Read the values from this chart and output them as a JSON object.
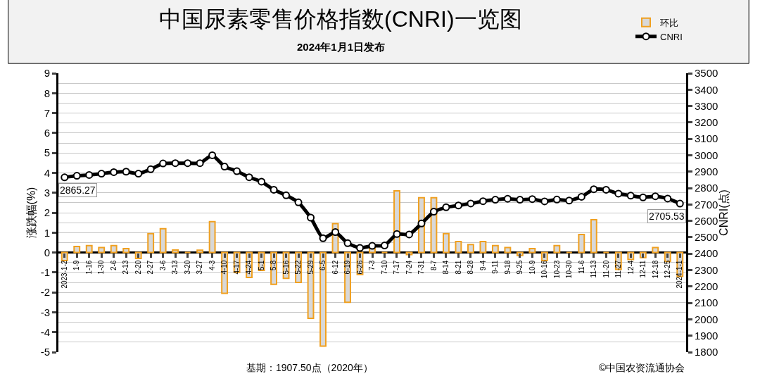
{
  "chart_data": {
    "type": "bar",
    "title": "中国尿素零售价格指数(CNRI)一览图",
    "subtitle": "2024年1月1日发布",
    "ylabel": "涨跌幅(%)",
    "y2label": "CNRI(点)",
    "categories": [
      "2023-1-2",
      "1-9",
      "1-16",
      "1-30",
      "2-6",
      "2-13",
      "2-20",
      "2-27",
      "3-6",
      "3-13",
      "3-20",
      "3-27",
      "4-3",
      "4-10",
      "4-17",
      "4-24",
      "5-1",
      "5-8",
      "5-16",
      "5-22",
      "5-29",
      "6-5",
      "6-12",
      "6-19",
      "6-26",
      "7-3",
      "7-10",
      "7-17",
      "7-24",
      "7-31",
      "8-7",
      "8-14",
      "8-21",
      "8-28",
      "9-4",
      "9-11",
      "9-18",
      "9-25",
      "10-9",
      "10-16",
      "10-23",
      "10-30",
      "11-6",
      "11-13",
      "11-20",
      "11-27",
      "12-4",
      "12-11",
      "12-18",
      "12-25",
      "2024-1-1"
    ],
    "series": [
      {
        "name": "环比",
        "color": "#f0a020",
        "values": [
          -0.4,
          0.3,
          0.35,
          0.25,
          0.35,
          0.2,
          -0.3,
          0.95,
          1.2,
          0.13,
          0,
          0.12,
          1.55,
          -2.05,
          -1.0,
          -1.25,
          -0.9,
          -1.6,
          -1.3,
          -1.5,
          -3.3,
          -4.7,
          1.45,
          -2.5,
          -1.1,
          0.3,
          0,
          3.1,
          -0.1,
          2.75,
          2.75,
          0.95,
          0.55,
          0.4,
          0.55,
          0.35,
          0.25,
          -0.15,
          0.2,
          -0.4,
          0.35,
          0,
          0.9,
          1.65,
          0,
          -0.85,
          -0.35,
          -0.25,
          0.25,
          -0.45,
          -1.2
        ]
      },
      {
        "name": "CNRI",
        "type": "line",
        "axis": "y2",
        "color": "#000000",
        "marker": "circle",
        "values": [
          2865.27,
          2875,
          2880,
          2888,
          2897,
          2900,
          2888,
          2915,
          2950,
          2952,
          2952,
          2952,
          3000,
          2931,
          2903,
          2866,
          2839,
          2790,
          2756,
          2713,
          2620,
          2494,
          2532,
          2464,
          2435,
          2448,
          2450,
          2520,
          2517,
          2584,
          2656,
          2683,
          2694,
          2706,
          2720,
          2729,
          2735,
          2729,
          2733,
          2719,
          2730,
          2724,
          2747,
          2793,
          2790,
          2766,
          2754,
          2743,
          2750,
          2736,
          2705.53
        ]
      }
    ],
    "ylim": [
      -5,
      9
    ],
    "yticks": [
      -5,
      -4,
      -3,
      -2,
      -1,
      0,
      1,
      2,
      3,
      4,
      5,
      6,
      7,
      8,
      9
    ],
    "y2lim": [
      1800,
      3500
    ],
    "y2ticks": [
      1800,
      1900,
      2000,
      2100,
      2200,
      2300,
      2400,
      2500,
      2600,
      2700,
      2800,
      2900,
      3000,
      3100,
      3200,
      3300,
      3400,
      3500
    ],
    "grid": "y",
    "legend": "top right",
    "annotations": [
      "2865.27",
      "2705.53",
      "基期：1907.50点（2020年）",
      "©中国农资流通协会"
    ]
  }
}
